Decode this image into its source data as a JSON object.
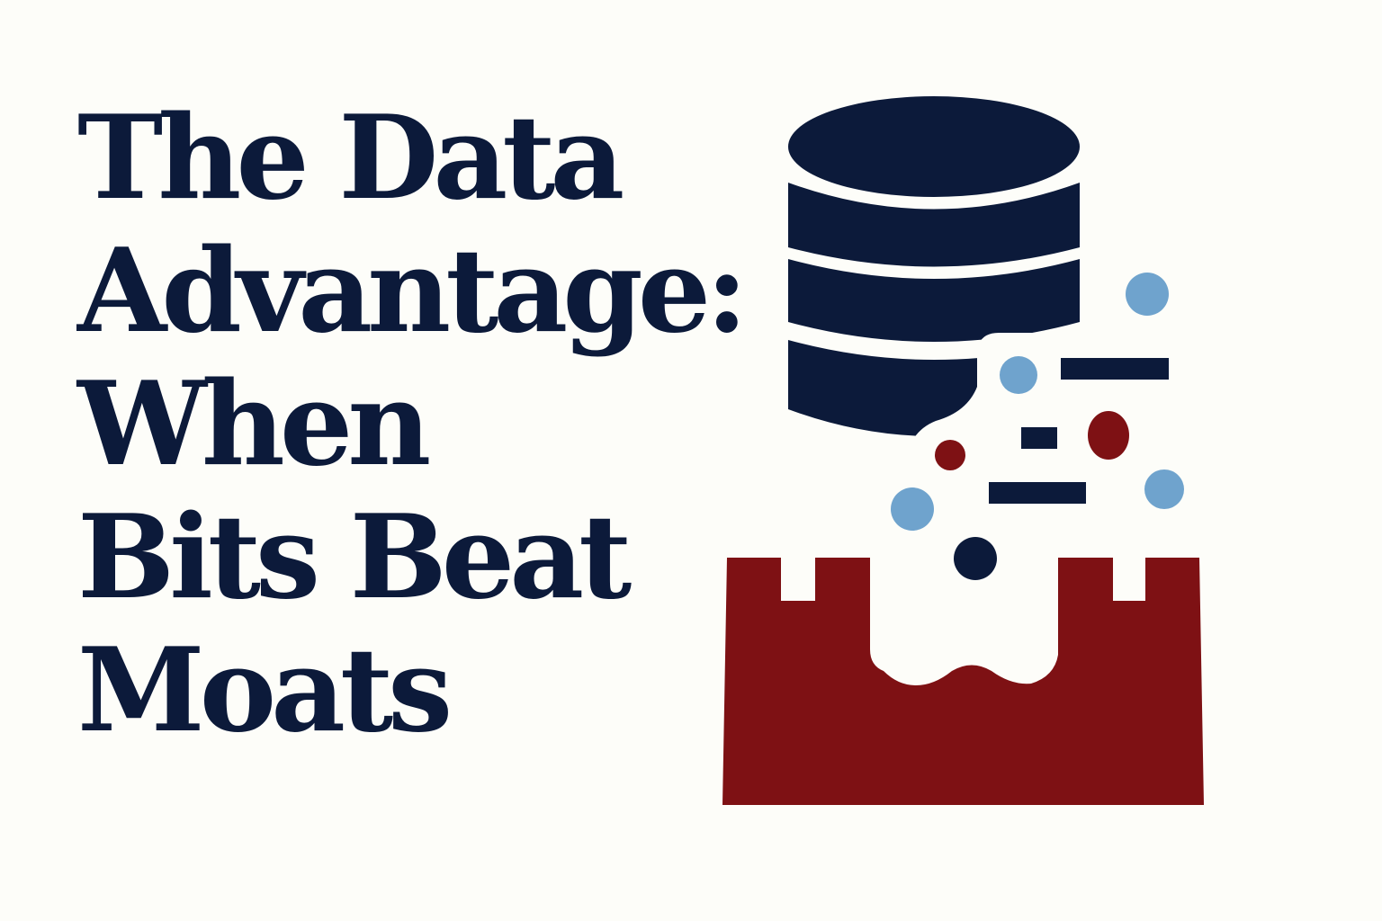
{
  "headline": {
    "lines": [
      "The Data",
      "Advantage:",
      "When",
      "Bits Beat",
      "Moats"
    ]
  },
  "illustration": {
    "database_icon": "database-icon",
    "castle_icon": "castle-wall-icon",
    "colors": {
      "navy": "#0c1a3a",
      "crimson": "#7e1114",
      "light_blue": "#6fa3cd",
      "background": "#fdfdf9"
    }
  }
}
